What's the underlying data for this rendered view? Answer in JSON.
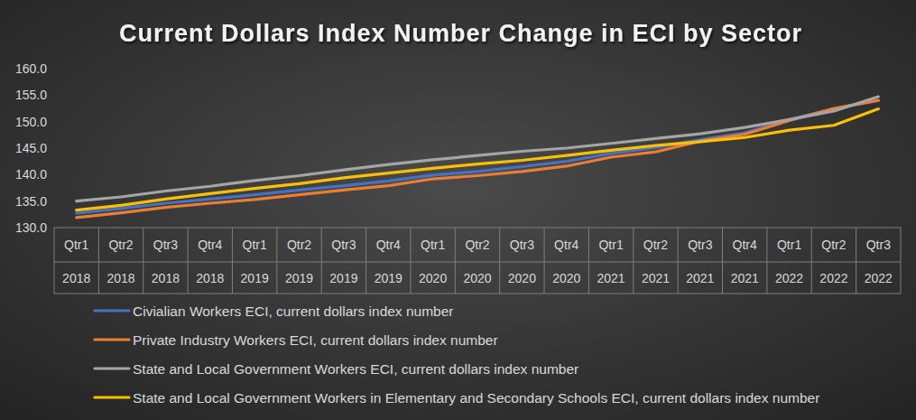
{
  "chart_data": {
    "type": "line",
    "title": "Current Dollars Index Number Change in ECI by Sector",
    "categories": [
      "Qtr1",
      "Qtr2",
      "Qtr3",
      "Qtr4",
      "Qtr1",
      "Qtr2",
      "Qtr3",
      "Qtr4",
      "Qtr1",
      "Qtr2",
      "Qtr3",
      "Qtr4",
      "Qtr1",
      "Qtr2",
      "Qtr3",
      "Qtr4",
      "Qtr1",
      "Qtr2",
      "Qtr3"
    ],
    "category_years": [
      "2018",
      "2018",
      "2018",
      "2018",
      "2019",
      "2019",
      "2019",
      "2019",
      "2020",
      "2020",
      "2020",
      "2020",
      "2021",
      "2021",
      "2021",
      "2021",
      "2022",
      "2022",
      "2022"
    ],
    "series": [
      {
        "name": "Civialian Workers ECI, current dollars index number",
        "color": "#4472c4",
        "values": [
          132.7,
          133.6,
          134.6,
          135.4,
          136.2,
          137.1,
          137.9,
          138.8,
          139.9,
          140.6,
          141.5,
          142.5,
          144.0,
          145.1,
          146.6,
          147.9,
          150.4,
          152.4,
          154.0
        ]
      },
      {
        "name": "Private Industry Workers ECI, current dollars index number",
        "color": "#ed7d31",
        "values": [
          131.9,
          132.8,
          133.8,
          134.6,
          135.3,
          136.2,
          137.1,
          137.9,
          139.2,
          139.8,
          140.6,
          141.6,
          143.3,
          144.3,
          146.3,
          147.6,
          150.2,
          152.5,
          154.0
        ]
      },
      {
        "name": "State and Local Government Workers ECI, current dollars index number",
        "color": "#a5a5a5",
        "values": [
          135.0,
          135.8,
          136.9,
          137.8,
          138.9,
          139.8,
          140.9,
          141.9,
          142.8,
          143.6,
          144.4,
          145.0,
          145.9,
          146.8,
          147.7,
          148.9,
          150.4,
          152.0,
          154.7
        ]
      },
      {
        "name": "State and Local Government Workers in Elementary and Secondary Schools ECI, current dollars index number",
        "color": "#ffc000",
        "values": [
          133.3,
          134.2,
          135.4,
          136.4,
          137.4,
          138.3,
          139.4,
          140.3,
          141.2,
          142.0,
          142.7,
          143.6,
          144.6,
          145.5,
          146.2,
          147.0,
          148.4,
          149.3,
          152.4
        ]
      }
    ],
    "ylim": [
      130,
      160
    ],
    "yticks": [
      {
        "value": 130,
        "label": "130.0"
      },
      {
        "value": 135,
        "label": "135.0"
      },
      {
        "value": 140,
        "label": "140.0"
      },
      {
        "value": 145,
        "label": "145.0"
      },
      {
        "value": 150,
        "label": "150.0"
      },
      {
        "value": 155,
        "label": "155.0"
      },
      {
        "value": 160,
        "label": "160.0"
      }
    ],
    "grid": false,
    "legend": "bottom"
  }
}
